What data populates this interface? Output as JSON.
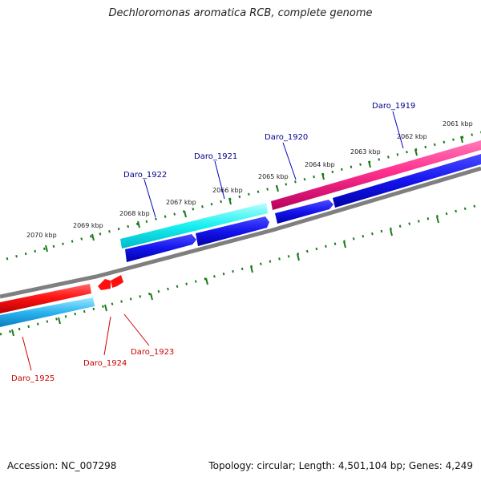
{
  "title": "Dechloromonas aromatica RCB, complete genome",
  "footer": {
    "accession": "Accession: NC_007298",
    "summary": "Topology: circular; Length: 4,501,104 bp; Genes: 4,249"
  },
  "colors": {
    "forward_label": "#00008b",
    "reverse_label": "#cc0000",
    "tick": "#1a7a1a",
    "backbone": "#808080"
  },
  "scale_ticks": [
    {
      "label": "2061 kbp"
    },
    {
      "label": "2062 kbp"
    },
    {
      "label": "2063 kbp"
    },
    {
      "label": "2064 kbp"
    },
    {
      "label": "2065 kbp"
    },
    {
      "label": "2066 kbp"
    },
    {
      "label": "2067 kbp"
    },
    {
      "label": "2068 kbp"
    },
    {
      "label": "2069 kbp"
    },
    {
      "label": "2070 kbp"
    }
  ],
  "genes_forward": [
    {
      "label": "Daro_1919"
    },
    {
      "label": "Daro_1920"
    },
    {
      "label": "Daro_1921"
    },
    {
      "label": "Daro_1922"
    }
  ],
  "genes_reverse": [
    {
      "label": "Daro_1923"
    },
    {
      "label": "Daro_1924"
    },
    {
      "label": "Daro_1925"
    }
  ]
}
